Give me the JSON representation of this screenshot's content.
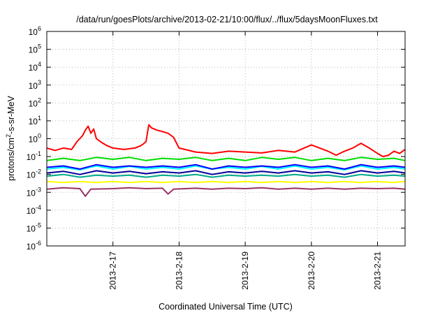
{
  "chart_data": {
    "type": "line",
    "title": "/data/run/goesPlots/archive/2013-02-21/10:00/flux/../flux/5daysMoonFluxes.txt",
    "xlabel": "Coordinated Universal Time (UTC)",
    "ylabel": {
      "prefix": "protons/cm",
      "sup": "2",
      "suffix": "-s-sr-MeV"
    },
    "x_scale": "time",
    "xlim": [
      "2013-02-16T00:00",
      "2013-02-21T10:00"
    ],
    "x_ticks": [
      {
        "date": "2013-02-17T00:00",
        "label": "2013-2-17"
      },
      {
        "date": "2013-02-18T00:00",
        "label": "2013-2-18"
      },
      {
        "date": "2013-02-19T00:00",
        "label": "2013-2-19"
      },
      {
        "date": "2013-02-20T00:00",
        "label": "2013-2-20"
      },
      {
        "date": "2013-02-21T00:00",
        "label": "2013-2-21"
      }
    ],
    "y_scale": "log",
    "ylim": [
      1e-06,
      1000000.0
    ],
    "y_ticks": [
      {
        "value": 1000000.0,
        "base": "10",
        "exp": "6"
      },
      {
        "value": 100000.0,
        "base": "10",
        "exp": "5"
      },
      {
        "value": 10000.0,
        "base": "10",
        "exp": "4"
      },
      {
        "value": 1000.0,
        "base": "10",
        "exp": "3"
      },
      {
        "value": 100.0,
        "base": "10",
        "exp": "2"
      },
      {
        "value": 10.0,
        "base": "10",
        "exp": "1"
      },
      {
        "value": 1.0,
        "base": "10",
        "exp": "0"
      },
      {
        "value": 0.1,
        "base": "10",
        "exp": "-1"
      },
      {
        "value": 0.01,
        "base": "10",
        "exp": "-2"
      },
      {
        "value": 0.001,
        "base": "10",
        "exp": "-3"
      },
      {
        "value": 0.0001,
        "base": "10",
        "exp": "-4"
      },
      {
        "value": 1e-05,
        "base": "10",
        "exp": "-5"
      },
      {
        "value": 1e-06,
        "base": "10",
        "exp": "-6"
      }
    ],
    "grid": true,
    "legend": "none",
    "series": [
      {
        "color": "#ff0000",
        "points": [
          [
            "2013-02-16T00:00",
            0.3
          ],
          [
            "2013-02-16T03:00",
            0.22
          ],
          [
            "2013-02-16T06:00",
            0.3
          ],
          [
            "2013-02-16T09:00",
            0.25
          ],
          [
            "2013-02-16T11:00",
            0.7
          ],
          [
            "2013-02-16T13:00",
            1.5
          ],
          [
            "2013-02-16T14:00",
            3.0
          ],
          [
            "2013-02-16T15:00",
            5.0
          ],
          [
            "2013-02-16T16:00",
            2.0
          ],
          [
            "2013-02-16T17:00",
            3.5
          ],
          [
            "2013-02-16T18:00",
            1.0
          ],
          [
            "2013-02-16T20:00",
            0.6
          ],
          [
            "2013-02-16T22:00",
            0.4
          ],
          [
            "2013-02-17T00:00",
            0.3
          ],
          [
            "2013-02-17T04:00",
            0.25
          ],
          [
            "2013-02-17T08:00",
            0.3
          ],
          [
            "2013-02-17T10:00",
            0.4
          ],
          [
            "2013-02-17T11:00",
            0.5
          ],
          [
            "2013-02-17T12:00",
            0.7
          ],
          [
            "2013-02-17T13:00",
            6.0
          ],
          [
            "2013-02-17T14:00",
            4.0
          ],
          [
            "2013-02-17T16:00",
            3.0
          ],
          [
            "2013-02-17T18:00",
            2.5
          ],
          [
            "2013-02-17T20:00",
            2.0
          ],
          [
            "2013-02-17T22:00",
            1.2
          ],
          [
            "2013-02-18T00:00",
            0.3
          ],
          [
            "2013-02-18T06:00",
            0.18
          ],
          [
            "2013-02-18T12:00",
            0.15
          ],
          [
            "2013-02-18T18:00",
            0.2
          ],
          [
            "2013-02-19T00:00",
            0.18
          ],
          [
            "2013-02-19T06:00",
            0.16
          ],
          [
            "2013-02-19T12:00",
            0.22
          ],
          [
            "2013-02-19T18:00",
            0.18
          ],
          [
            "2013-02-20T00:00",
            0.45
          ],
          [
            "2013-02-20T03:00",
            0.3
          ],
          [
            "2013-02-20T06:00",
            0.2
          ],
          [
            "2013-02-20T09:00",
            0.12
          ],
          [
            "2013-02-20T12:00",
            0.2
          ],
          [
            "2013-02-20T15:00",
            0.3
          ],
          [
            "2013-02-20T18:00",
            0.55
          ],
          [
            "2013-02-20T21:00",
            0.3
          ],
          [
            "2013-02-21T00:00",
            0.15
          ],
          [
            "2013-02-21T02:00",
            0.1
          ],
          [
            "2013-02-21T04:00",
            0.12
          ],
          [
            "2013-02-21T06:00",
            0.2
          ],
          [
            "2013-02-21T08:00",
            0.15
          ],
          [
            "2013-02-21T10:00",
            0.25
          ]
        ]
      },
      {
        "color": "#00dd00",
        "points": [
          [
            "2013-02-16T00:00",
            0.06
          ],
          [
            "2013-02-16T06:00",
            0.08
          ],
          [
            "2013-02-16T12:00",
            0.06
          ],
          [
            "2013-02-16T18:00",
            0.09
          ],
          [
            "2013-02-17T00:00",
            0.07
          ],
          [
            "2013-02-17T06:00",
            0.09
          ],
          [
            "2013-02-17T12:00",
            0.06
          ],
          [
            "2013-02-17T18:00",
            0.08
          ],
          [
            "2013-02-18T00:00",
            0.07
          ],
          [
            "2013-02-18T06:00",
            0.09
          ],
          [
            "2013-02-18T12:00",
            0.06
          ],
          [
            "2013-02-18T18:00",
            0.08
          ],
          [
            "2013-02-19T00:00",
            0.06
          ],
          [
            "2013-02-19T06:00",
            0.09
          ],
          [
            "2013-02-19T12:00",
            0.07
          ],
          [
            "2013-02-19T18:00",
            0.09
          ],
          [
            "2013-02-20T00:00",
            0.06
          ],
          [
            "2013-02-20T06:00",
            0.08
          ],
          [
            "2013-02-20T12:00",
            0.06
          ],
          [
            "2013-02-20T18:00",
            0.09
          ],
          [
            "2013-02-21T00:00",
            0.07
          ],
          [
            "2013-02-21T06:00",
            0.08
          ],
          [
            "2013-02-21T10:00",
            0.06
          ]
        ]
      },
      {
        "color": "#00ffff",
        "points": [
          [
            "2013-02-16T00:00",
            0.02
          ],
          [
            "2013-02-16T06:00",
            0.025
          ],
          [
            "2013-02-16T12:00",
            0.018
          ],
          [
            "2013-02-16T18:00",
            0.03
          ],
          [
            "2013-02-17T00:00",
            0.02
          ],
          [
            "2013-02-17T06:00",
            0.028
          ],
          [
            "2013-02-17T12:00",
            0.02
          ],
          [
            "2013-02-17T18:00",
            0.025
          ],
          [
            "2013-02-18T00:00",
            0.02
          ],
          [
            "2013-02-18T06:00",
            0.03
          ],
          [
            "2013-02-18T12:00",
            0.02
          ],
          [
            "2013-02-18T18:00",
            0.025
          ],
          [
            "2013-02-19T00:00",
            0.02
          ],
          [
            "2013-02-19T06:00",
            0.028
          ],
          [
            "2013-02-19T12:00",
            0.02
          ],
          [
            "2013-02-19T18:00",
            0.03
          ],
          [
            "2013-02-20T00:00",
            0.02
          ],
          [
            "2013-02-20T06:00",
            0.025
          ],
          [
            "2013-02-20T12:00",
            0.018
          ],
          [
            "2013-02-20T18:00",
            0.03
          ],
          [
            "2013-02-21T00:00",
            0.02
          ],
          [
            "2013-02-21T06:00",
            0.025
          ],
          [
            "2013-02-21T10:00",
            0.02
          ]
        ]
      },
      {
        "color": "#0000ff",
        "points": [
          [
            "2013-02-16T00:00",
            0.025
          ],
          [
            "2013-02-16T06:00",
            0.03
          ],
          [
            "2013-02-16T12:00",
            0.02
          ],
          [
            "2013-02-16T18:00",
            0.035
          ],
          [
            "2013-02-17T00:00",
            0.025
          ],
          [
            "2013-02-17T06:00",
            0.03
          ],
          [
            "2013-02-17T12:00",
            0.025
          ],
          [
            "2013-02-17T18:00",
            0.03
          ],
          [
            "2013-02-18T00:00",
            0.025
          ],
          [
            "2013-02-18T06:00",
            0.035
          ],
          [
            "2013-02-18T12:00",
            0.02
          ],
          [
            "2013-02-18T18:00",
            0.03
          ],
          [
            "2013-02-19T00:00",
            0.025
          ],
          [
            "2013-02-19T06:00",
            0.03
          ],
          [
            "2013-02-19T12:00",
            0.025
          ],
          [
            "2013-02-19T18:00",
            0.035
          ],
          [
            "2013-02-20T00:00",
            0.025
          ],
          [
            "2013-02-20T06:00",
            0.03
          ],
          [
            "2013-02-20T12:00",
            0.02
          ],
          [
            "2013-02-20T18:00",
            0.035
          ],
          [
            "2013-02-21T00:00",
            0.025
          ],
          [
            "2013-02-21T06:00",
            0.03
          ],
          [
            "2013-02-21T10:00",
            0.025
          ]
        ]
      },
      {
        "color": "#000099",
        "points": [
          [
            "2013-02-16T00:00",
            0.012
          ],
          [
            "2013-02-16T06:00",
            0.015
          ],
          [
            "2013-02-16T12:00",
            0.01
          ],
          [
            "2013-02-16T18:00",
            0.016
          ],
          [
            "2013-02-17T00:00",
            0.012
          ],
          [
            "2013-02-17T06:00",
            0.015
          ],
          [
            "2013-02-17T12:00",
            0.011
          ],
          [
            "2013-02-17T18:00",
            0.014
          ],
          [
            "2013-02-18T00:00",
            0.012
          ],
          [
            "2013-02-18T06:00",
            0.016
          ],
          [
            "2013-02-18T12:00",
            0.01
          ],
          [
            "2013-02-18T18:00",
            0.014
          ],
          [
            "2013-02-19T00:00",
            0.012
          ],
          [
            "2013-02-19T06:00",
            0.015
          ],
          [
            "2013-02-19T12:00",
            0.012
          ],
          [
            "2013-02-19T18:00",
            0.016
          ],
          [
            "2013-02-20T00:00",
            0.012
          ],
          [
            "2013-02-20T06:00",
            0.014
          ],
          [
            "2013-02-20T12:00",
            0.01
          ],
          [
            "2013-02-20T18:00",
            0.016
          ],
          [
            "2013-02-21T00:00",
            0.012
          ],
          [
            "2013-02-21T06:00",
            0.015
          ],
          [
            "2013-02-21T10:00",
            0.012
          ]
        ]
      },
      {
        "color": "#00aa88",
        "points": [
          [
            "2013-02-16T00:00",
            0.008
          ],
          [
            "2013-02-16T06:00",
            0.01
          ],
          [
            "2013-02-16T12:00",
            0.007
          ],
          [
            "2013-02-16T18:00",
            0.009
          ],
          [
            "2013-02-17T00:00",
            0.008
          ],
          [
            "2013-02-17T06:00",
            0.009
          ],
          [
            "2013-02-17T12:00",
            0.007
          ],
          [
            "2013-02-17T18:00",
            0.009
          ],
          [
            "2013-02-18T00:00",
            0.008
          ],
          [
            "2013-02-18T06:00",
            0.01
          ],
          [
            "2013-02-18T12:00",
            0.007
          ],
          [
            "2013-02-18T18:00",
            0.009
          ],
          [
            "2013-02-19T00:00",
            0.008
          ],
          [
            "2013-02-19T06:00",
            0.009
          ],
          [
            "2013-02-19T12:00",
            0.008
          ],
          [
            "2013-02-19T18:00",
            0.01
          ],
          [
            "2013-02-20T00:00",
            0.008
          ],
          [
            "2013-02-20T06:00",
            0.009
          ],
          [
            "2013-02-20T12:00",
            0.007
          ],
          [
            "2013-02-20T18:00",
            0.01
          ],
          [
            "2013-02-21T00:00",
            0.008
          ],
          [
            "2013-02-21T06:00",
            0.009
          ],
          [
            "2013-02-21T10:00",
            0.008
          ]
        ]
      },
      {
        "color": "#ffff00",
        "points": [
          [
            "2013-02-16T00:00",
            0.004
          ],
          [
            "2013-02-16T06:00",
            0.0035
          ],
          [
            "2013-02-16T12:00",
            0.004
          ],
          [
            "2013-02-16T18:00",
            0.0035
          ],
          [
            "2013-02-17T00:00",
            0.004
          ],
          [
            "2013-02-17T06:00",
            0.0035
          ],
          [
            "2013-02-17T12:00",
            0.004
          ],
          [
            "2013-02-17T18:00",
            0.0035
          ],
          [
            "2013-02-18T00:00",
            0.004
          ],
          [
            "2013-02-18T06:00",
            0.0035
          ],
          [
            "2013-02-18T12:00",
            0.004
          ],
          [
            "2013-02-18T18:00",
            0.0035
          ],
          [
            "2013-02-19T00:00",
            0.004
          ],
          [
            "2013-02-19T06:00",
            0.0035
          ],
          [
            "2013-02-19T12:00",
            0.004
          ],
          [
            "2013-02-19T18:00",
            0.0035
          ],
          [
            "2013-02-20T00:00",
            0.004
          ],
          [
            "2013-02-20T06:00",
            0.0035
          ],
          [
            "2013-02-20T12:00",
            0.004
          ],
          [
            "2013-02-20T18:00",
            0.0035
          ],
          [
            "2013-02-21T00:00",
            0.004
          ],
          [
            "2013-02-21T06:00",
            0.0035
          ],
          [
            "2013-02-21T10:00",
            0.004
          ]
        ]
      },
      {
        "color": "#993366",
        "points": [
          [
            "2013-02-16T00:00",
            0.0015
          ],
          [
            "2013-02-16T06:00",
            0.0018
          ],
          [
            "2013-02-16T12:00",
            0.0016
          ],
          [
            "2013-02-16T14:00",
            0.0006
          ],
          [
            "2013-02-16T16:00",
            0.0015
          ],
          [
            "2013-02-17T00:00",
            0.0016
          ],
          [
            "2013-02-17T06:00",
            0.0018
          ],
          [
            "2013-02-17T12:00",
            0.0016
          ],
          [
            "2013-02-17T18:00",
            0.0017
          ],
          [
            "2013-02-17T20:00",
            0.0008
          ],
          [
            "2013-02-17T22:00",
            0.0015
          ],
          [
            "2013-02-18T06:00",
            0.0017
          ],
          [
            "2013-02-18T12:00",
            0.0015
          ],
          [
            "2013-02-18T18:00",
            0.0017
          ],
          [
            "2013-02-19T00:00",
            0.0016
          ],
          [
            "2013-02-19T06:00",
            0.0018
          ],
          [
            "2013-02-19T12:00",
            0.0015
          ],
          [
            "2013-02-19T18:00",
            0.0017
          ],
          [
            "2013-02-20T00:00",
            0.0015
          ],
          [
            "2013-02-20T06:00",
            0.0017
          ],
          [
            "2013-02-20T12:00",
            0.0015
          ],
          [
            "2013-02-20T18:00",
            0.0017
          ],
          [
            "2013-02-21T00:00",
            0.0016
          ],
          [
            "2013-02-21T06:00",
            0.0017
          ],
          [
            "2013-02-21T10:00",
            0.0015
          ]
        ]
      }
    ]
  }
}
